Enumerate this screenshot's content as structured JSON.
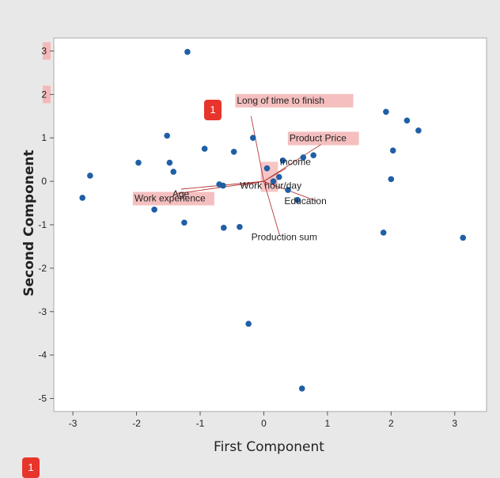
{
  "chart_data": {
    "type": "scatter",
    "title": "",
    "xlabel": "First Component",
    "ylabel": "Second Component",
    "xlim": [
      -3.3,
      3.5
    ],
    "ylim": [
      -5.3,
      3.3
    ],
    "xticks": [
      -3,
      -2,
      -1,
      0,
      1,
      2,
      3
    ],
    "yticks": [
      -5,
      -4,
      -3,
      -2,
      -1,
      0,
      1,
      2,
      3
    ],
    "grid": false,
    "point_color": "#1f5fa6",
    "loading_color": "#b53a3a",
    "highlight_color": "#f4b8b8",
    "points": [
      {
        "x": -1.2,
        "y": 2.98
      },
      {
        "x": 1.92,
        "y": 1.6
      },
      {
        "x": 2.25,
        "y": 1.4
      },
      {
        "x": 2.43,
        "y": 1.17
      },
      {
        "x": -1.52,
        "y": 1.05
      },
      {
        "x": -0.17,
        "y": 1.0
      },
      {
        "x": -0.93,
        "y": 0.75
      },
      {
        "x": -0.47,
        "y": 0.68
      },
      {
        "x": 2.03,
        "y": 0.71
      },
      {
        "x": 0.78,
        "y": 0.6
      },
      {
        "x": 0.62,
        "y": 0.55
      },
      {
        "x": 0.3,
        "y": 0.48
      },
      {
        "x": -1.97,
        "y": 0.43
      },
      {
        "x": -1.48,
        "y": 0.43
      },
      {
        "x": 0.05,
        "y": 0.3
      },
      {
        "x": -1.42,
        "y": 0.22
      },
      {
        "x": 0.24,
        "y": 0.1
      },
      {
        "x": -2.73,
        "y": 0.13
      },
      {
        "x": 0.15,
        "y": 0.0
      },
      {
        "x": 2.0,
        "y": 0.05
      },
      {
        "x": -0.7,
        "y": -0.07
      },
      {
        "x": -0.64,
        "y": -0.1
      },
      {
        "x": 0.38,
        "y": -0.2
      },
      {
        "x": 0.53,
        "y": -0.43
      },
      {
        "x": -2.85,
        "y": -0.38
      },
      {
        "x": -1.72,
        "y": -0.65
      },
      {
        "x": -1.25,
        "y": -0.95
      },
      {
        "x": -0.63,
        "y": -1.07
      },
      {
        "x": -0.38,
        "y": -1.05
      },
      {
        "x": 1.88,
        "y": -1.18
      },
      {
        "x": 3.13,
        "y": -1.3
      },
      {
        "x": -0.24,
        "y": -3.28
      },
      {
        "x": 0.6,
        "y": -4.77
      }
    ],
    "loadings": [
      {
        "name": "Long of time to finish",
        "x": -0.2,
        "y": 1.5
      },
      {
        "name": "Product Price",
        "x": 0.9,
        "y": 0.85
      },
      {
        "name": "Income",
        "x": 0.35,
        "y": 0.3
      },
      {
        "name": "Education",
        "x": 0.82,
        "y": -0.45
      },
      {
        "name": "Work hour/day",
        "x": -0.35,
        "y": -0.1
      },
      {
        "name": "Production sum",
        "x": 0.25,
        "y": -1.25
      },
      {
        "name": "Work experience",
        "x": -1.35,
        "y": -0.28
      },
      {
        "name": "Age",
        "x": -1.3,
        "y": -0.18
      }
    ],
    "annotations": [
      {
        "label": "Long of time to finish"
      },
      {
        "label": "Product Price"
      },
      {
        "label": "Work experience"
      }
    ]
  },
  "markers": [
    {
      "label": "1"
    },
    {
      "label": "1"
    }
  ]
}
